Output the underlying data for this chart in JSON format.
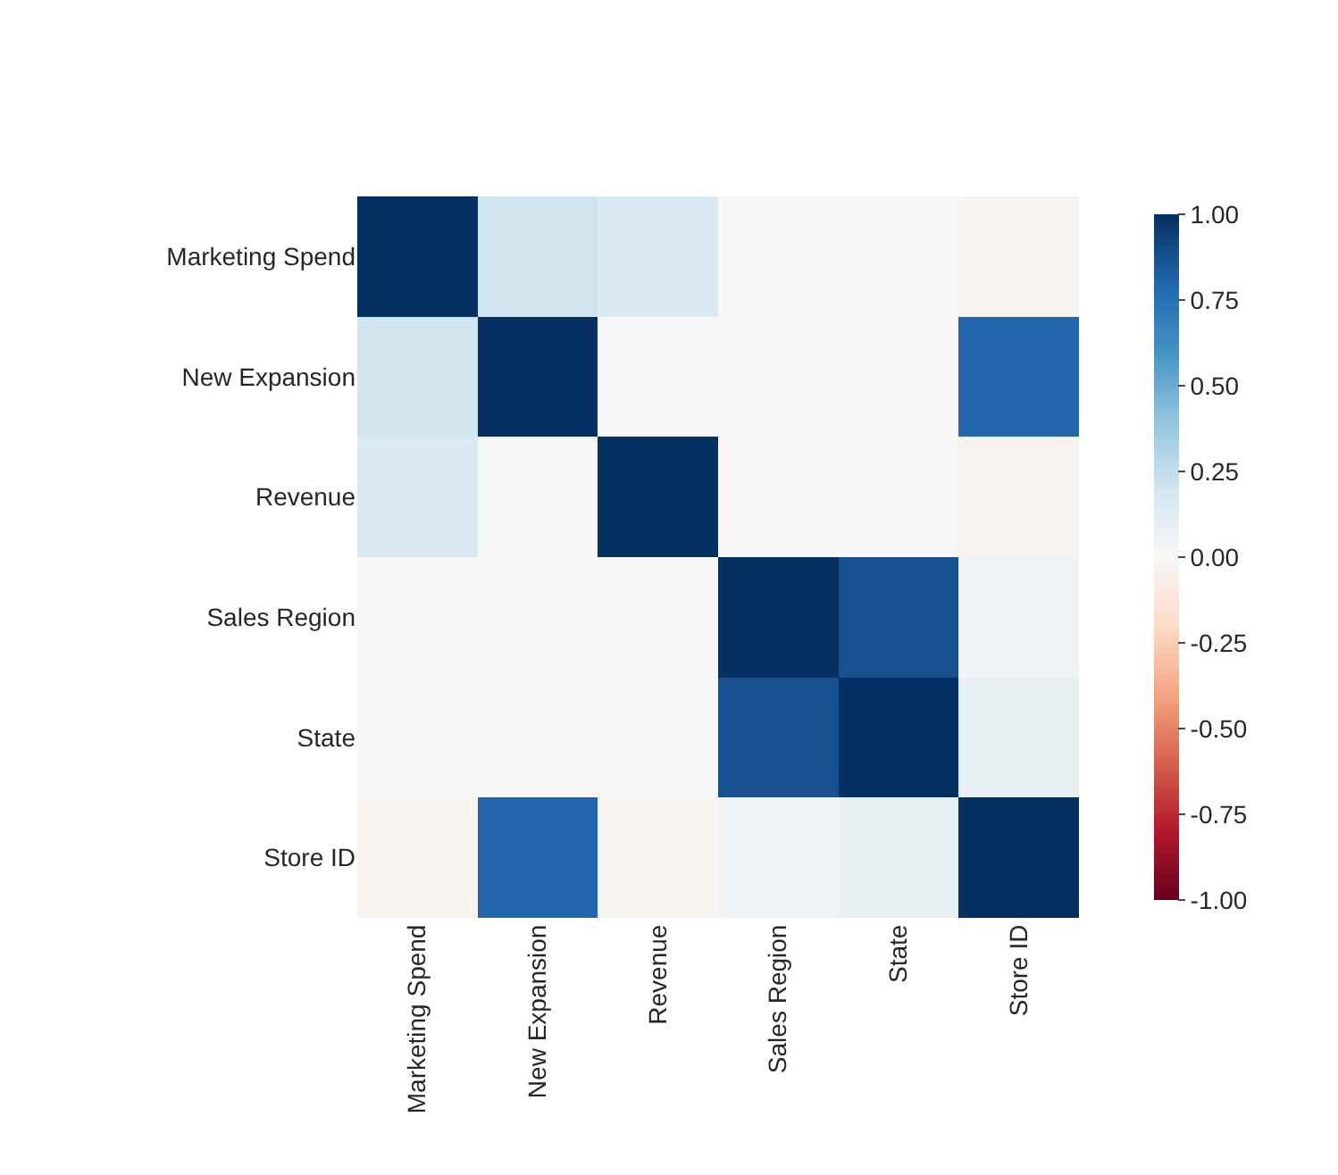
{
  "chart_data": {
    "type": "heatmap",
    "categories": [
      "Marketing Spend",
      "New Expansion",
      "Revenue",
      "Sales Region",
      "State",
      "Store ID"
    ],
    "y_categories": [
      "Marketing Spend",
      "New Expansion",
      "Revenue",
      "Sales Region",
      "State",
      "Store ID"
    ],
    "cells": [
      [
        1,
        0.2,
        0.15,
        0,
        0,
        -0.02
      ],
      [
        0.2,
        1,
        0,
        0,
        0,
        0.8
      ],
      [
        0.15,
        0,
        1,
        0,
        0,
        -0.02
      ],
      [
        0,
        0,
        0,
        1,
        0.88,
        0.04
      ],
      [
        0,
        0,
        0,
        0.88,
        1,
        0.08
      ],
      [
        -0.02,
        0.8,
        -0.02,
        0.04,
        0.08,
        1
      ]
    ],
    "clim": [
      -1,
      1
    ],
    "cticks": [
      {
        "value": 1,
        "label": "1.00"
      },
      {
        "value": 0.75,
        "label": "0.75"
      },
      {
        "value": 0.5,
        "label": "0.50"
      },
      {
        "value": 0.25,
        "label": "0.25"
      },
      {
        "value": 0,
        "label": "0.00"
      },
      {
        "value": -0.25,
        "label": "-0.25"
      },
      {
        "value": -0.5,
        "label": "-0.50"
      },
      {
        "value": -0.75,
        "label": "-0.75"
      },
      {
        "value": -1,
        "label": "-1.00"
      }
    ]
  }
}
